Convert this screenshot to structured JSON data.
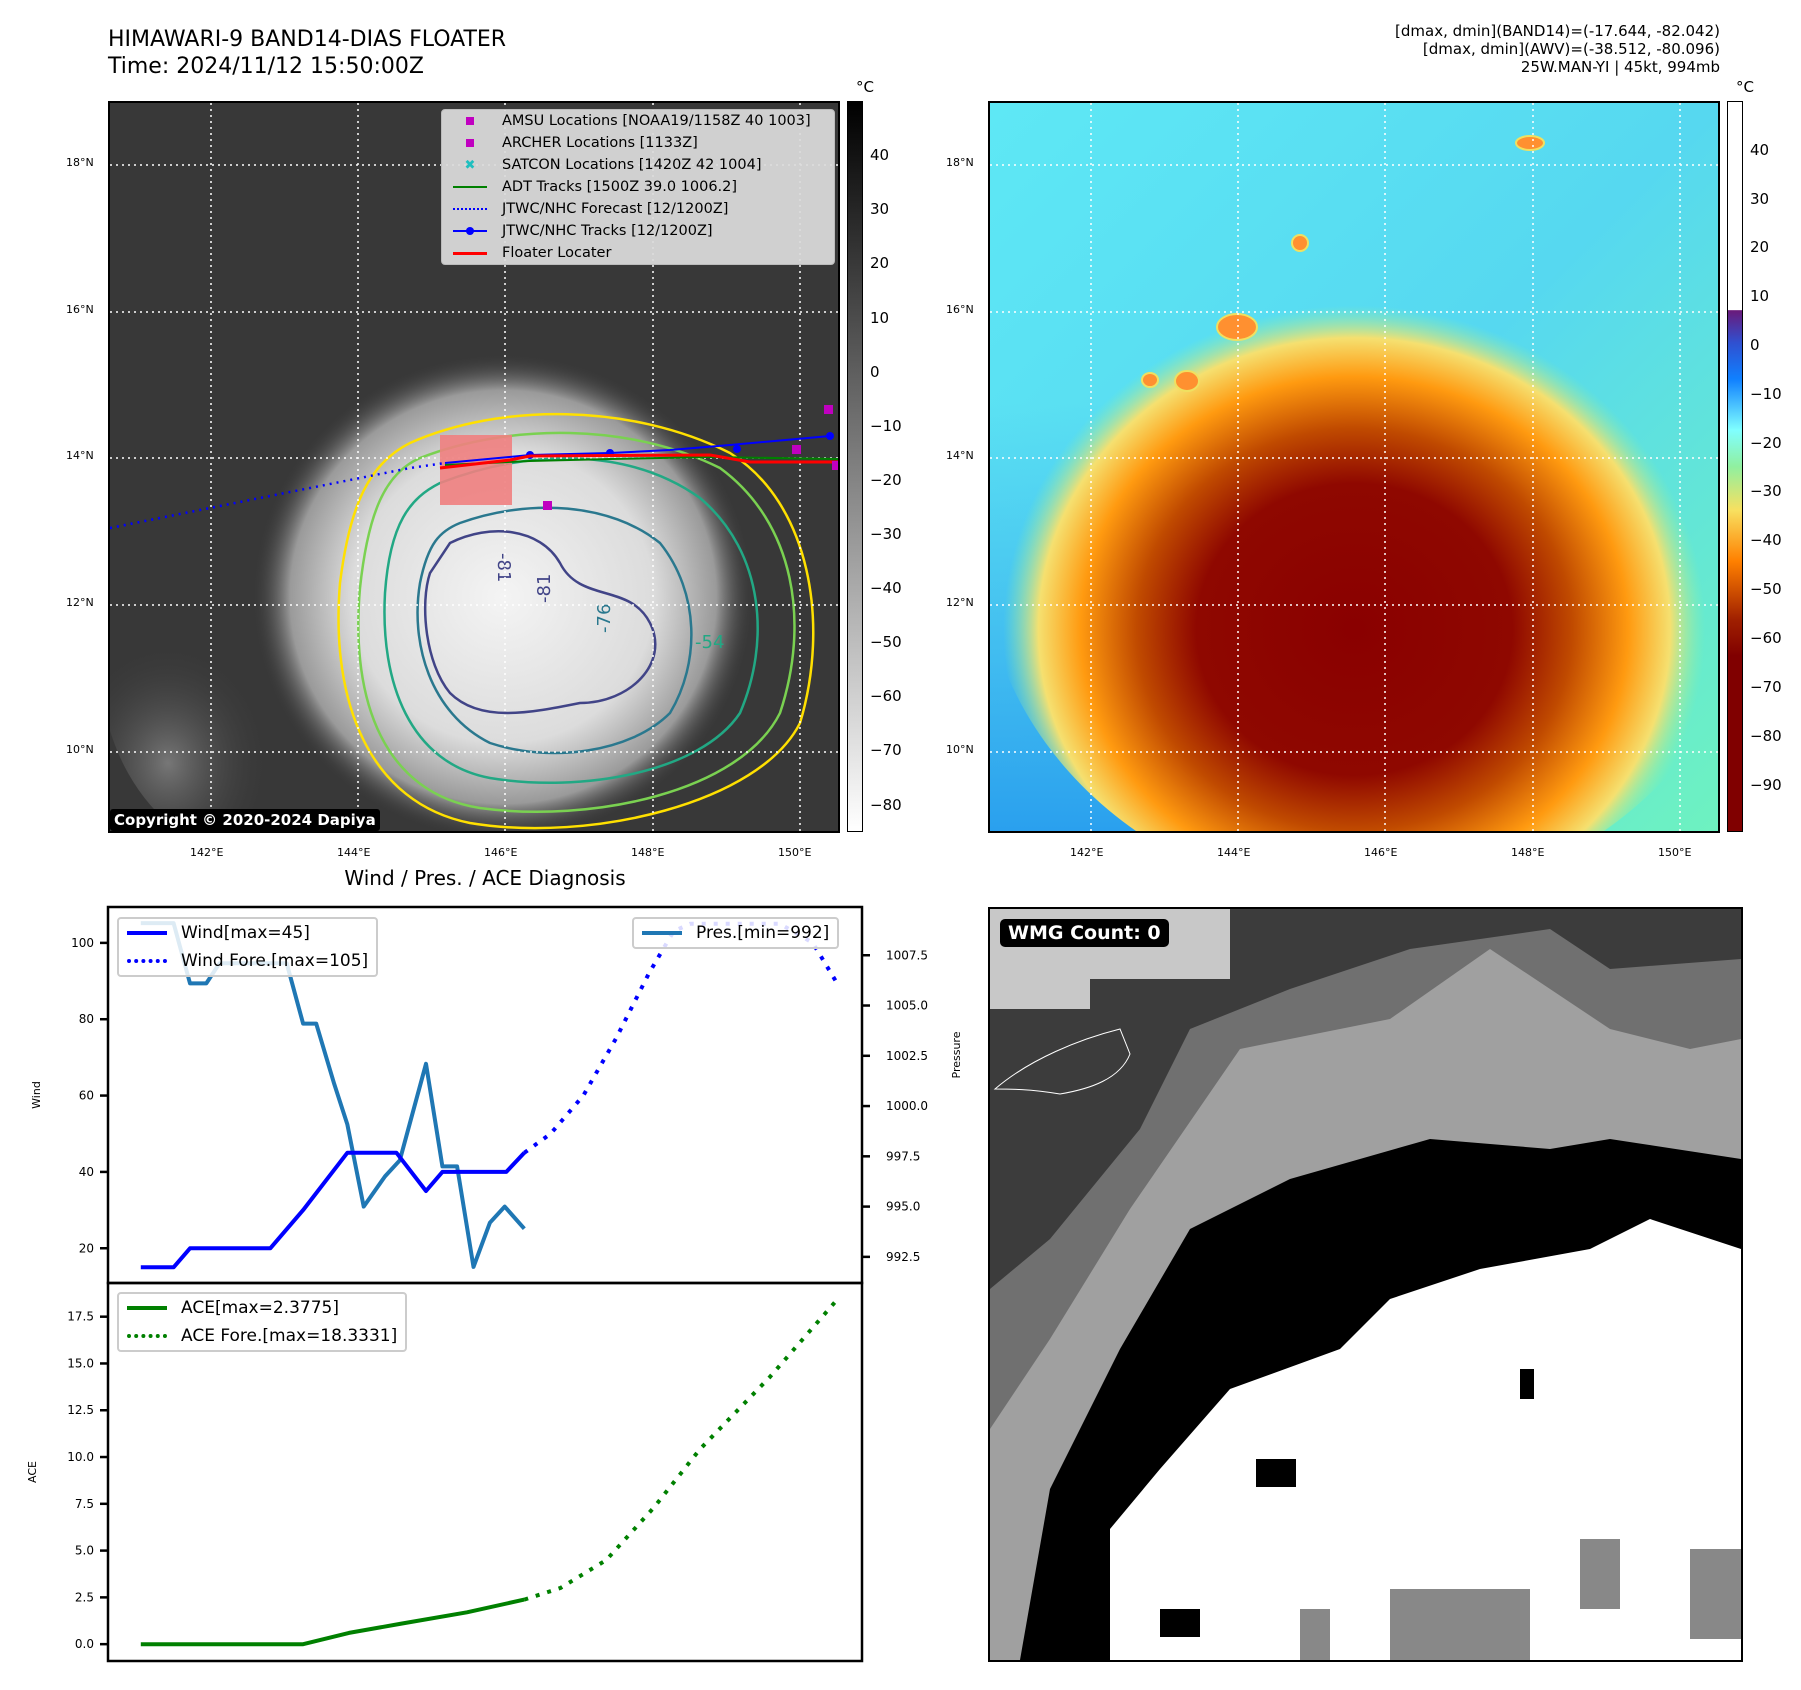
{
  "header": {
    "title": "HIMAWARI-9 BAND14-DIAS FLOATER",
    "time": "Time: 2024/11/12 15:50:00Z",
    "info_band14": "[dmax, dmin](BAND14)=(-17.644, -82.042)",
    "info_awv": "[dmax, dmin](AWV)=(-38.512, -80.096)",
    "info_storm": "25W.MAN-YI | 45kt, 994mb"
  },
  "map_left": {
    "unit": "°C",
    "colorbar_ticks": [
      "40",
      "30",
      "20",
      "10",
      "0",
      "−10",
      "−20",
      "−30",
      "−40",
      "−50",
      "−60",
      "−70",
      "−80"
    ],
    "lat_ticks": [
      "18°N",
      "16°N",
      "14°N",
      "12°N",
      "10°N"
    ],
    "lon_ticks": [
      "142°E",
      "144°E",
      "146°E",
      "148°E",
      "150°E"
    ],
    "copyright": "Copyright © 2020-2024 Dapiya",
    "contour_labels": [
      "-81",
      "-81",
      "-76",
      "-54"
    ],
    "legend": [
      {
        "label": "AMSU Locations [NOAA19/1158Z 40 1003]",
        "icon": "square-marker-icon",
        "color": "#c000c0"
      },
      {
        "label": "ARCHER Locations [1133Z]",
        "icon": "square-marker-icon",
        "color": "#c000c0"
      },
      {
        "label": "SATCON Locations [1420Z 42 1004]",
        "icon": "x-marker-icon",
        "color": "#1fbfbf"
      },
      {
        "label": "ADT Tracks [1500Z 39.0 1006.2]",
        "icon": "solid-line-icon",
        "color": "#008000"
      },
      {
        "label": "JTWC/NHC Forecast [12/1200Z]",
        "icon": "dotted-line-icon",
        "color": "#0000ff"
      },
      {
        "label": "JTWC/NHC Tracks [12/1200Z]",
        "icon": "line-dot-icon",
        "color": "#0000ff"
      },
      {
        "label": "Floater Locater",
        "icon": "solid-line-icon",
        "color": "#ff0000"
      }
    ]
  },
  "map_right": {
    "unit": "°C",
    "colorbar_ticks": [
      "40",
      "30",
      "20",
      "10",
      "0",
      "−10",
      "−20",
      "−30",
      "−40",
      "−50",
      "−60",
      "−70",
      "−80",
      "−90"
    ],
    "lat_ticks": [
      "18°N",
      "16°N",
      "14°N",
      "12°N",
      "10°N"
    ],
    "lon_ticks": [
      "142°E",
      "144°E",
      "146°E",
      "148°E",
      "150°E"
    ]
  },
  "wmg_panel": {
    "label": "WMG Count: 0"
  },
  "chart_data": [
    {
      "type": "line",
      "title": "Wind / Pres. / ACE Diagnosis",
      "xlabel": "",
      "ylabel": "Wind",
      "y2label": "Pressure",
      "ylim": [
        10.9,
        109.4
      ],
      "y2lim": [
        991.2,
        1009.9
      ],
      "xlim": [
        -2,
        44
      ],
      "yticks": [
        "20",
        "40",
        "60",
        "80",
        "100"
      ],
      "y2ticks": [
        "992.5",
        "995.0",
        "997.5",
        "1000.0",
        "1002.5",
        "1005.0",
        "1007.5"
      ],
      "series": [
        {
          "name": "Wind[max=45]",
          "axis": "left",
          "style": "solid",
          "color": "#0000ff",
          "x": [
            0,
            2,
            3,
            7.9,
            9.9,
            12.6,
            15.6,
            17.4,
            18.4,
            22.3,
            23.4
          ],
          "values": [
            15,
            15,
            20,
            20,
            30,
            45,
            45,
            35,
            40,
            40,
            45
          ]
        },
        {
          "name": "Wind Fore.[max=105]",
          "axis": "left",
          "style": "dotted",
          "color": "#0000ff",
          "x": [
            23.4,
            25,
            27,
            29,
            31,
            32.5,
            33.5,
            36,
            39,
            41,
            42.4
          ],
          "values": [
            45,
            50,
            60,
            75,
            92,
            103,
            105,
            105,
            105,
            100,
            90
          ]
        },
        {
          "name": "Pres.[min=992]",
          "axis": "right",
          "style": "solid",
          "color": "#1f77b4",
          "x": [
            0,
            2,
            3,
            4,
            4.8,
            8.9,
            9.9,
            10.7,
            11.8,
            12.6,
            13.6,
            14.9,
            15.8,
            16.4,
            17.4,
            18.4,
            19.3,
            20.3,
            21.3,
            22.2,
            23.4
          ],
          "values": [
            1009.1,
            1009.1,
            1006.1,
            1006.1,
            1007.1,
            1007.1,
            1004.1,
            1004.1,
            1001.1,
            999.1,
            995.0,
            996.5,
            997.3,
            999.1,
            1002.1,
            997.0,
            997.0,
            992.0,
            994.2,
            995.0,
            993.9
          ]
        }
      ]
    },
    {
      "type": "line",
      "title": "",
      "xlabel": "",
      "ylabel": "ACE",
      "ylim": [
        -0.9,
        19.3
      ],
      "xlim": [
        -2,
        44
      ],
      "yticks": [
        "0.0",
        "2.5",
        "5.0",
        "7.5",
        "10.0",
        "12.5",
        "15.0",
        "17.5"
      ],
      "series": [
        {
          "name": "ACE[max=2.3775]",
          "style": "solid",
          "color": "#008000",
          "x": [
            0,
            9.9,
            12.7,
            15.9,
            19.9,
            23.4
          ],
          "values": [
            0,
            0,
            0.6,
            1.1,
            1.7,
            2.38
          ]
        },
        {
          "name": "ACE Fore.[max=18.3331]",
          "style": "dotted",
          "color": "#008000",
          "x": [
            23.4,
            25.6,
            28.4,
            31.3,
            34.1,
            38.4,
            42.4
          ],
          "values": [
            2.38,
            3.0,
            4.5,
            7.3,
            10.4,
            14.3,
            18.33
          ]
        }
      ]
    }
  ]
}
